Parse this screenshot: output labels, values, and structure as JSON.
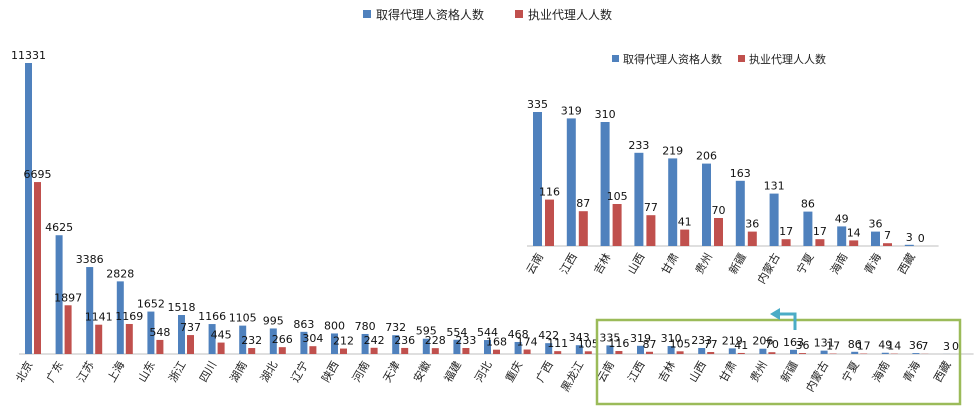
{
  "legend": {
    "series_a": "取得代理人资格人数",
    "series_b": "执业代理人人数"
  },
  "colors": {
    "series_a": "#4f81bd",
    "series_b": "#c0504d",
    "highlight": "#9bbb59",
    "arrow": "#4bacc6",
    "axis": "#bfbfbf"
  },
  "chart_data": [
    {
      "type": "bar",
      "categories": [
        "北京",
        "广东",
        "江苏",
        "上海",
        "山东",
        "浙江",
        "四川",
        "湖南",
        "湖北",
        "辽宁",
        "陕西",
        "河南",
        "天津",
        "安徽",
        "福建",
        "河北",
        "重庆",
        "广西",
        "黑龙江",
        "云南",
        "江西",
        "吉林",
        "山西",
        "甘肃",
        "贵州",
        "新疆",
        "内蒙古",
        "宁夏",
        "海南",
        "青海",
        "西藏"
      ],
      "series": [
        {
          "name": "取得代理人资格人数",
          "values": [
            11331,
            4625,
            3386,
            2828,
            1652,
            1518,
            1166,
            1105,
            995,
            863,
            800,
            780,
            732,
            595,
            554,
            544,
            468,
            422,
            343,
            335,
            319,
            310,
            233,
            219,
            206,
            163,
            131,
            86,
            49,
            36,
            3
          ]
        },
        {
          "name": "执业代理人人数",
          "values": [
            6695,
            1897,
            1141,
            1169,
            548,
            737,
            445,
            232,
            266,
            304,
            212,
            242,
            236,
            228,
            233,
            168,
            174,
            111,
            105,
            116,
            87,
            105,
            77,
            41,
            70,
            36,
            17,
            17,
            14,
            7,
            0
          ]
        }
      ],
      "ylim": [
        0,
        11331
      ],
      "legend_position": "top",
      "grid": false
    },
    {
      "type": "bar",
      "categories": [
        "云南",
        "江西",
        "吉林",
        "山西",
        "甘肃",
        "贵州",
        "新疆",
        "内蒙古",
        "宁夏",
        "海南",
        "青海",
        "西藏"
      ],
      "series": [
        {
          "name": "取得代理人资格人数",
          "values": [
            335,
            319,
            310,
            233,
            219,
            206,
            163,
            131,
            86,
            49,
            36,
            3
          ]
        },
        {
          "name": "执业代理人人数",
          "values": [
            116,
            87,
            105,
            77,
            41,
            70,
            36,
            17,
            17,
            14,
            7,
            0
          ]
        }
      ],
      "ylim": [
        0,
        335
      ],
      "legend_position": "top",
      "grid": false
    }
  ]
}
